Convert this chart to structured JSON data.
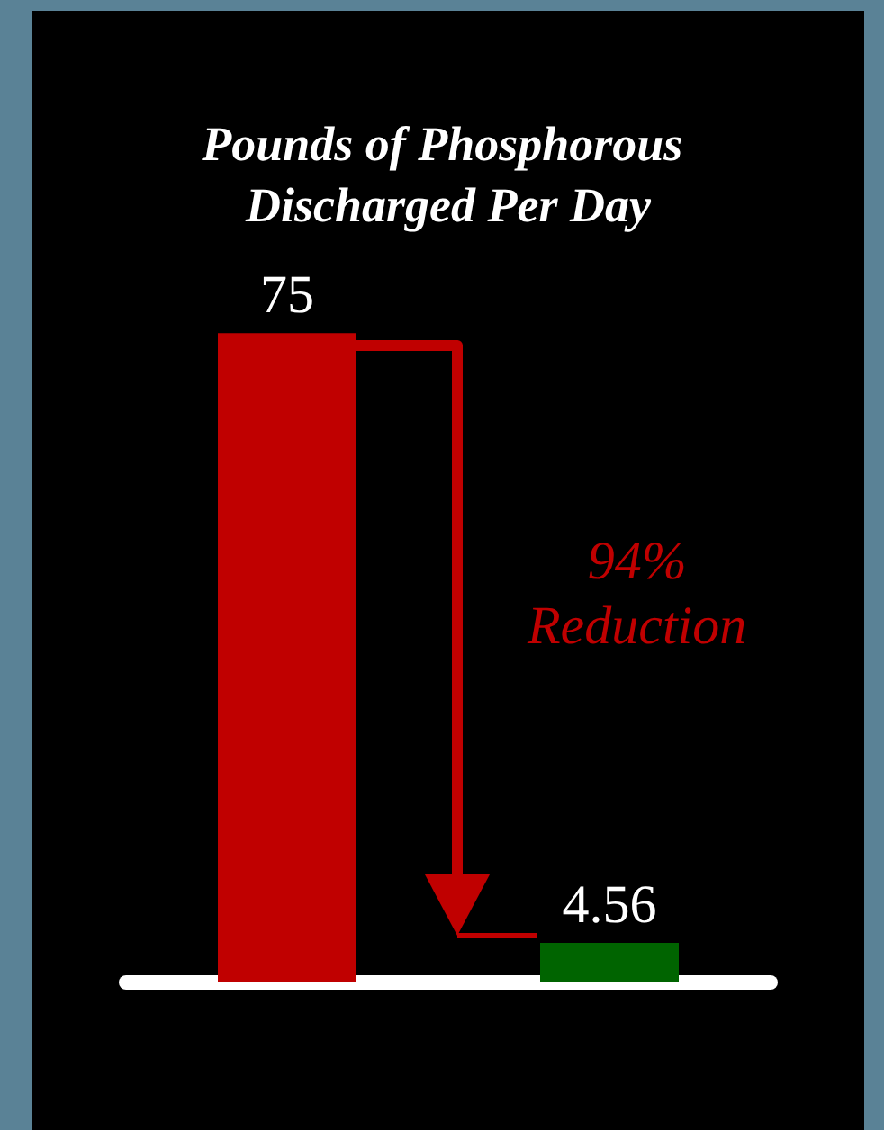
{
  "chart_data": {
    "type": "bar",
    "title": "Pounds of Phosphorous Discharged Per Day",
    "categories": [
      null,
      null
    ],
    "values": [
      75,
      4.56
    ],
    "colors": [
      "#c00000",
      "#006400"
    ],
    "data_labels": true,
    "annotations": [
      "94%\nReduction"
    ]
  }
}
